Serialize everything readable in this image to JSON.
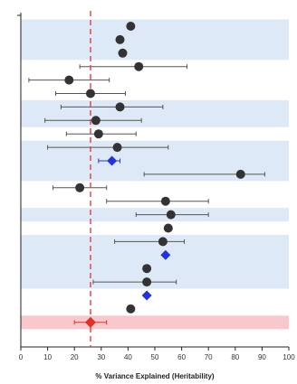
{
  "chart_data": {
    "type": "scatter",
    "title": "",
    "xlabel": "% Variance Explained (Heritability)",
    "ylabel": "",
    "xlim": [
      0,
      100
    ],
    "xticks": [
      "0",
      "10",
      "20",
      "30",
      "40",
      "50",
      "60",
      "70",
      "80",
      "90",
      "100"
    ],
    "reference_line": {
      "x": 26,
      "color": "#e0403a",
      "style": "dashed"
    },
    "colors": {
      "estimate": "#333333",
      "meta": "#2233dd",
      "overall": "#e0302a",
      "band_light": "#dde9f6",
      "band_overall": "#f8c8cc",
      "errorbar": "#555555"
    },
    "grid": false,
    "legend": "none",
    "bands": [
      {
        "from": 0,
        "to": 3,
        "type": "light"
      },
      {
        "from": 3,
        "to": 6,
        "type": "white"
      },
      {
        "from": 6,
        "to": 8,
        "type": "light"
      },
      {
        "from": 8,
        "to": 9,
        "type": "white"
      },
      {
        "from": 9,
        "to": 12,
        "type": "light"
      },
      {
        "from": 12,
        "to": 14,
        "type": "white"
      },
      {
        "from": 14,
        "to": 15,
        "type": "light"
      },
      {
        "from": 15,
        "to": 16,
        "type": "white"
      },
      {
        "from": 16,
        "to": 20,
        "type": "light"
      },
      {
        "from": 20,
        "to": 22,
        "type": "white"
      },
      {
        "from": 22,
        "to": 23,
        "type": "overall"
      }
    ],
    "points": [
      {
        "value": 41,
        "lo": null,
        "hi": null,
        "kind": "estimate"
      },
      {
        "value": 37,
        "lo": null,
        "hi": null,
        "kind": "estimate"
      },
      {
        "value": 38,
        "lo": null,
        "hi": null,
        "kind": "estimate"
      },
      {
        "value": 44,
        "lo": 22,
        "hi": 62,
        "kind": "estimate"
      },
      {
        "value": 18,
        "lo": 3,
        "hi": 33,
        "kind": "estimate"
      },
      {
        "value": 26,
        "lo": 13,
        "hi": 39,
        "kind": "estimate"
      },
      {
        "value": 37,
        "lo": 15,
        "hi": 53,
        "kind": "estimate"
      },
      {
        "value": 28,
        "lo": 9,
        "hi": 45,
        "kind": "estimate"
      },
      {
        "value": 29,
        "lo": 17,
        "hi": 43,
        "kind": "estimate"
      },
      {
        "value": 36,
        "lo": 10,
        "hi": 55,
        "kind": "estimate"
      },
      {
        "value": 34,
        "lo": 29,
        "hi": 37,
        "kind": "meta"
      },
      {
        "value": 82,
        "lo": 46,
        "hi": 91,
        "kind": "estimate"
      },
      {
        "value": 22,
        "lo": 12,
        "hi": 32,
        "kind": "estimate"
      },
      {
        "value": 54,
        "lo": 32,
        "hi": 70,
        "kind": "estimate"
      },
      {
        "value": 56,
        "lo": 43,
        "hi": 70,
        "kind": "estimate"
      },
      {
        "value": 55,
        "lo": null,
        "hi": null,
        "kind": "estimate"
      },
      {
        "value": 53,
        "lo": 35,
        "hi": 61,
        "kind": "estimate"
      },
      {
        "value": 54,
        "lo": null,
        "hi": null,
        "kind": "meta"
      },
      {
        "value": 47,
        "lo": null,
        "hi": null,
        "kind": "estimate"
      },
      {
        "value": 47,
        "lo": 27,
        "hi": 58,
        "kind": "estimate"
      },
      {
        "value": 47,
        "lo": null,
        "hi": null,
        "kind": "meta"
      },
      {
        "value": 41,
        "lo": null,
        "hi": null,
        "kind": "estimate"
      },
      {
        "value": 26,
        "lo": 20,
        "hi": 32,
        "kind": "overall"
      }
    ]
  }
}
